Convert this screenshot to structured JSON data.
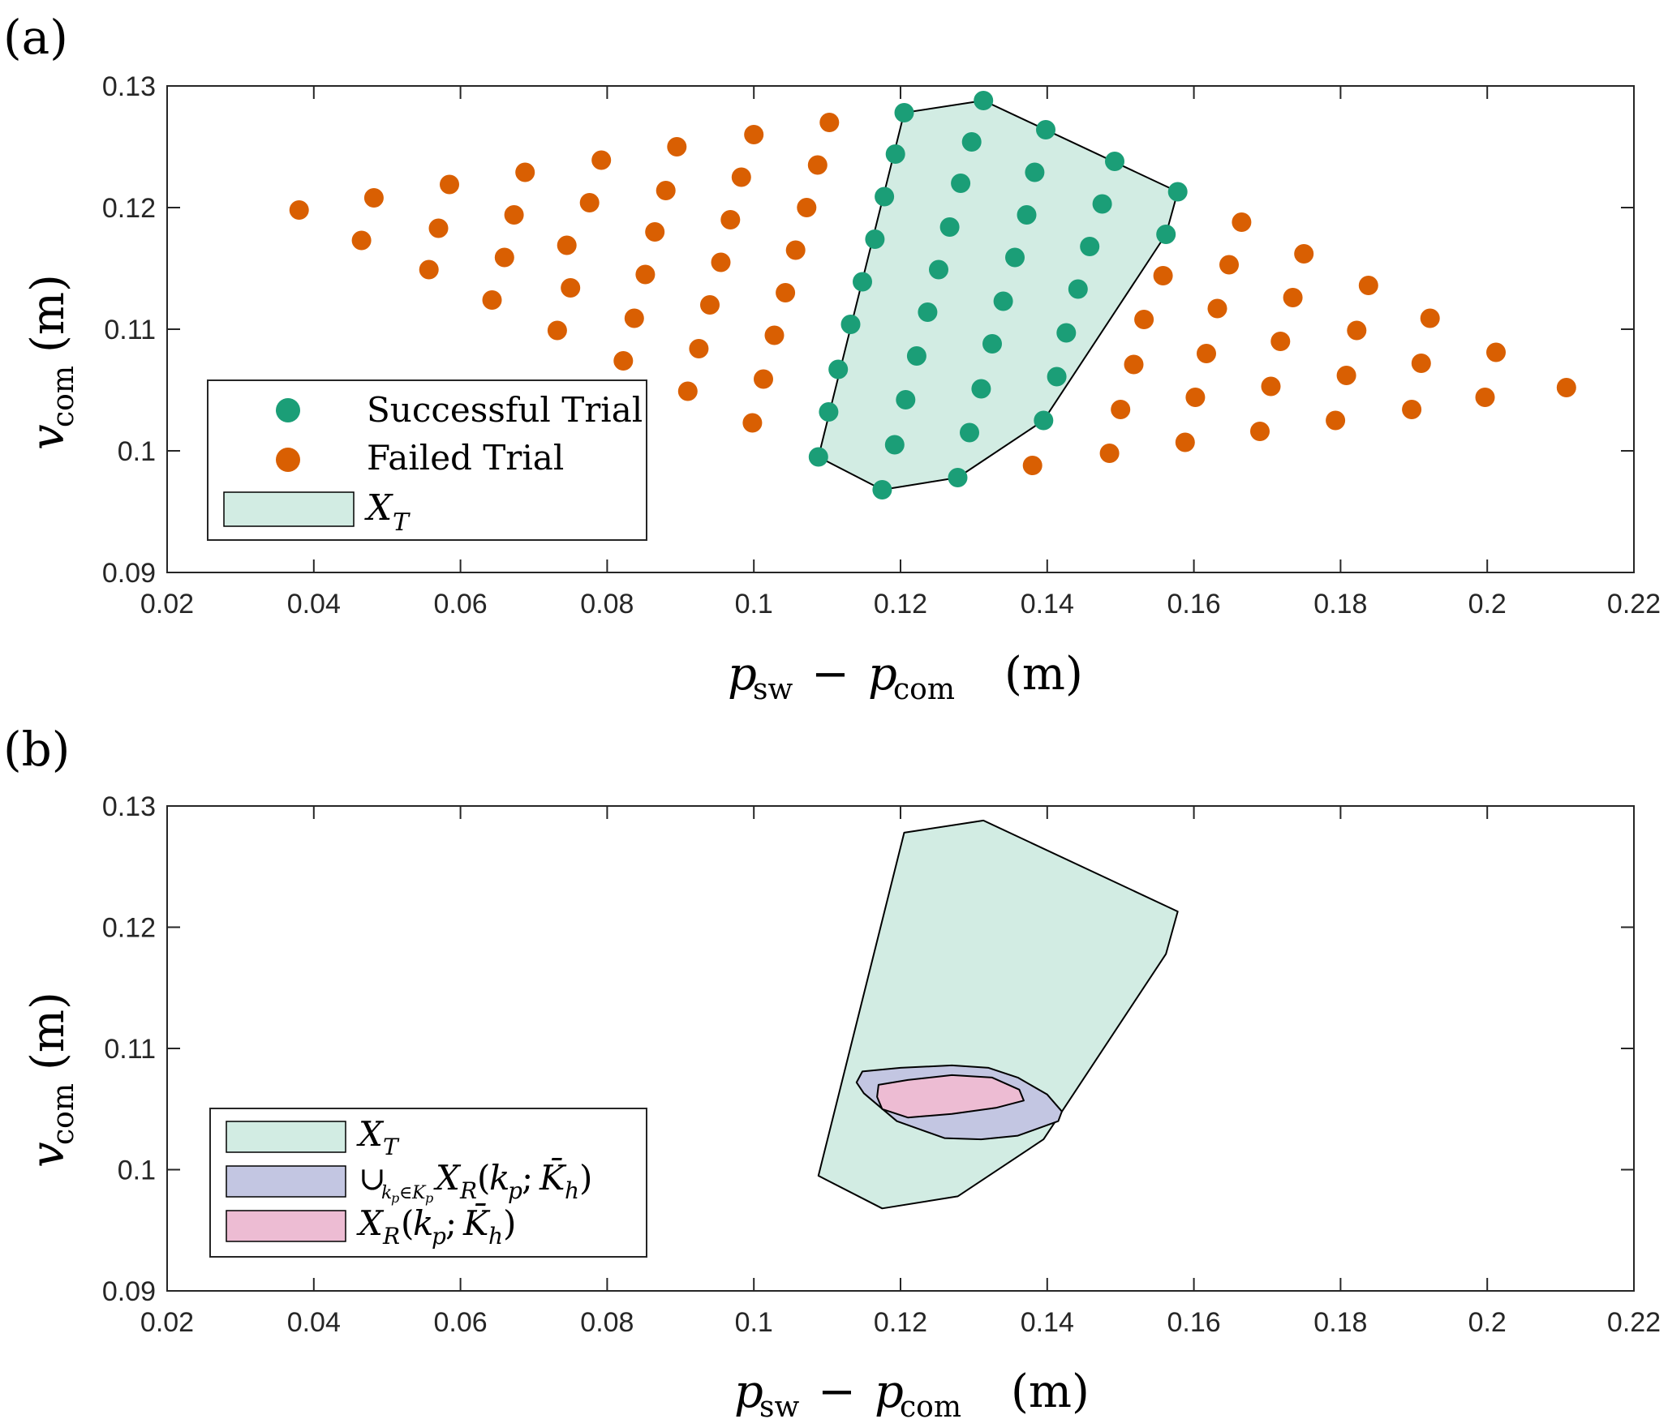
{
  "colors": {
    "success": "#1b9e77",
    "failed": "#d95f02",
    "xt_fill": "#d2ece3",
    "union_fill": "#c3c6e2",
    "xr_fill": "#edbcd3",
    "axis": "#262626"
  },
  "chart_data": [
    {
      "panel_label": "(a)",
      "type": "scatter",
      "xlabel": "p_sw − p_com (m)",
      "ylabel": "v_com (m)",
      "xlim": [
        0.02,
        0.22
      ],
      "ylim": [
        0.09,
        0.13
      ],
      "x_ticks": [
        "0.02",
        "0.04",
        "0.06",
        "0.08",
        "0.1",
        "0.12",
        "0.14",
        "0.16",
        "0.18",
        "0.2",
        "0.22"
      ],
      "y_ticks": [
        "0.09",
        "0.1",
        "0.11",
        "0.12",
        "0.13"
      ],
      "x_tick_values": [
        0.02,
        0.04,
        0.06,
        0.08,
        0.1,
        0.12,
        0.14,
        0.16,
        0.18,
        0.2,
        0.22
      ],
      "y_tick_values": [
        0.09,
        0.1,
        0.11,
        0.12,
        0.13
      ],
      "legend_position": "bottom-left",
      "legend": [
        {
          "label": "Successful Trial",
          "marker": "dot",
          "color_key": "success"
        },
        {
          "label": "Failed Trial",
          "marker": "dot",
          "color_key": "failed"
        },
        {
          "label": "X_T",
          "marker": "patch",
          "color_key": "xt_fill"
        }
      ],
      "series": [
        {
          "name": "Successful Trial",
          "points": [
            [
              0.1205,
              0.1278
            ],
            [
              0.1313,
              0.1288
            ],
            [
              0.1297,
              0.1254
            ],
            [
              0.1398,
              0.1264
            ],
            [
              0.1193,
              0.1244
            ],
            [
              0.1492,
              0.1238
            ],
            [
              0.1282,
              0.122
            ],
            [
              0.1383,
              0.1229
            ],
            [
              0.1178,
              0.1209
            ],
            [
              0.1578,
              0.1213
            ],
            [
              0.1475,
              0.1203
            ],
            [
              0.1372,
              0.1194
            ],
            [
              0.1267,
              0.1184
            ],
            [
              0.1562,
              0.1178
            ],
            [
              0.1165,
              0.1174
            ],
            [
              0.1458,
              0.1168
            ],
            [
              0.1356,
              0.1159
            ],
            [
              0.1252,
              0.1149
            ],
            [
              0.1148,
              0.1139
            ],
            [
              0.1442,
              0.1133
            ],
            [
              0.134,
              0.1123
            ],
            [
              0.1237,
              0.1114
            ],
            [
              0.1132,
              0.1104
            ],
            [
              0.1426,
              0.1097
            ],
            [
              0.1325,
              0.1088
            ],
            [
              0.1222,
              0.1078
            ],
            [
              0.1115,
              0.1067
            ],
            [
              0.1413,
              0.1061
            ],
            [
              0.131,
              0.1051
            ],
            [
              0.1207,
              0.1042
            ],
            [
              0.1102,
              0.1032
            ],
            [
              0.1395,
              0.1025
            ],
            [
              0.1294,
              0.1015
            ],
            [
              0.1192,
              0.1005
            ],
            [
              0.1088,
              0.0995
            ],
            [
              0.1278,
              0.0978
            ],
            [
              0.1175,
              0.0968
            ]
          ]
        },
        {
          "name": "Failed Trial",
          "points": [
            [
              0.038,
              0.1198
            ],
            [
              0.0482,
              0.1208
            ],
            [
              0.0585,
              0.1219
            ],
            [
              0.0688,
              0.1229
            ],
            [
              0.0792,
              0.1239
            ],
            [
              0.0895,
              0.125
            ],
            [
              0.1,
              0.126
            ],
            [
              0.1103,
              0.127
            ],
            [
              0.0465,
              0.1173
            ],
            [
              0.057,
              0.1183
            ],
            [
              0.0673,
              0.1194
            ],
            [
              0.0776,
              0.1204
            ],
            [
              0.088,
              0.1214
            ],
            [
              0.0983,
              0.1225
            ],
            [
              0.1087,
              0.1235
            ],
            [
              0.0557,
              0.1149
            ],
            [
              0.066,
              0.1159
            ],
            [
              0.0745,
              0.1169
            ],
            [
              0.0865,
              0.118
            ],
            [
              0.0968,
              0.119
            ],
            [
              0.1072,
              0.12
            ],
            [
              0.0643,
              0.1124
            ],
            [
              0.075,
              0.1134
            ],
            [
              0.0852,
              0.1145
            ],
            [
              0.0955,
              0.1155
            ],
            [
              0.1057,
              0.1165
            ],
            [
              0.0732,
              0.1099
            ],
            [
              0.0837,
              0.1109
            ],
            [
              0.094,
              0.112
            ],
            [
              0.1043,
              0.113
            ],
            [
              0.0822,
              0.1074
            ],
            [
              0.0925,
              0.1084
            ],
            [
              0.1028,
              0.1095
            ],
            [
              0.091,
              0.1049
            ],
            [
              0.1013,
              0.1059
            ],
            [
              0.0998,
              0.1023
            ],
            [
              0.1665,
              0.1188
            ],
            [
              0.175,
              0.1162
            ],
            [
              0.1558,
              0.1144
            ],
            [
              0.1648,
              0.1153
            ],
            [
              0.1838,
              0.1136
            ],
            [
              0.1735,
              0.1126
            ],
            [
              0.1632,
              0.1117
            ],
            [
              0.1532,
              0.1108
            ],
            [
              0.1922,
              0.1109
            ],
            [
              0.1822,
              0.1099
            ],
            [
              0.1718,
              0.109
            ],
            [
              0.1617,
              0.108
            ],
            [
              0.1518,
              0.1071
            ],
            [
              0.2012,
              0.1081
            ],
            [
              0.191,
              0.1072
            ],
            [
              0.1808,
              0.1062
            ],
            [
              0.1705,
              0.1053
            ],
            [
              0.1602,
              0.1044
            ],
            [
              0.15,
              0.1034
            ],
            [
              0.2108,
              0.1052
            ],
            [
              0.1997,
              0.1044
            ],
            [
              0.1897,
              0.1034
            ],
            [
              0.1793,
              0.1025
            ],
            [
              0.169,
              0.1016
            ],
            [
              0.1588,
              0.1007
            ],
            [
              0.1485,
              0.0998
            ],
            [
              0.138,
              0.0988
            ]
          ]
        }
      ],
      "regions": [
        {
          "name": "X_T",
          "color_key": "xt_fill",
          "polygon": [
            [
              0.1205,
              0.1278
            ],
            [
              0.1313,
              0.1288
            ],
            [
              0.1578,
              0.1213
            ],
            [
              0.1562,
              0.1178
            ],
            [
              0.1395,
              0.1025
            ],
            [
              0.1278,
              0.0978
            ],
            [
              0.1175,
              0.0968
            ],
            [
              0.1088,
              0.0995
            ]
          ]
        }
      ]
    },
    {
      "panel_label": "(b)",
      "type": "area",
      "xlabel": "p_sw − p_com (m)",
      "ylabel": "v_com (m)",
      "xlim": [
        0.02,
        0.22
      ],
      "ylim": [
        0.09,
        0.13
      ],
      "x_ticks": [
        "0.02",
        "0.04",
        "0.06",
        "0.08",
        "0.1",
        "0.12",
        "0.14",
        "0.16",
        "0.18",
        "0.2",
        "0.22"
      ],
      "y_ticks": [
        "0.09",
        "0.1",
        "0.11",
        "0.12",
        "0.13"
      ],
      "x_tick_values": [
        0.02,
        0.04,
        0.06,
        0.08,
        0.1,
        0.12,
        0.14,
        0.16,
        0.18,
        0.2,
        0.22
      ],
      "y_tick_values": [
        0.09,
        0.1,
        0.11,
        0.12,
        0.13
      ],
      "legend_position": "bottom-left",
      "legend": [
        {
          "label": "X_T",
          "marker": "patch",
          "color_key": "xt_fill"
        },
        {
          "label": "∪_{k_p∈K_p} X_R(k_p; K̄_h)",
          "marker": "patch",
          "color_key": "union_fill"
        },
        {
          "label": "X_R(k_p; K̄_h)",
          "marker": "patch",
          "color_key": "xr_fill"
        }
      ],
      "regions": [
        {
          "name": "X_T",
          "color_key": "xt_fill",
          "polygon": [
            [
              0.1205,
              0.1278
            ],
            [
              0.1313,
              0.1288
            ],
            [
              0.1578,
              0.1213
            ],
            [
              0.1562,
              0.1178
            ],
            [
              0.1395,
              0.1025
            ],
            [
              0.1278,
              0.0978
            ],
            [
              0.1175,
              0.0968
            ],
            [
              0.1088,
              0.0995
            ]
          ]
        },
        {
          "name": "∪ X_R",
          "color_key": "union_fill",
          "polygon": [
            [
              0.1148,
              0.1081
            ],
            [
              0.12,
              0.1084
            ],
            [
              0.127,
              0.1086
            ],
            [
              0.132,
              0.1084
            ],
            [
              0.136,
              0.1076
            ],
            [
              0.14,
              0.1062
            ],
            [
              0.142,
              0.1048
            ],
            [
              0.1415,
              0.104
            ],
            [
              0.136,
              0.1028
            ],
            [
              0.131,
              0.1025
            ],
            [
              0.126,
              0.1026
            ],
            [
              0.1195,
              0.104
            ],
            [
              0.115,
              0.1063
            ],
            [
              0.114,
              0.1072
            ]
          ]
        },
        {
          "name": "X_R",
          "color_key": "xr_fill",
          "polygon": [
            [
              0.117,
              0.107
            ],
            [
              0.121,
              0.1074
            ],
            [
              0.127,
              0.1078
            ],
            [
              0.1325,
              0.1076
            ],
            [
              0.1362,
              0.1066
            ],
            [
              0.1368,
              0.1057
            ],
            [
              0.133,
              0.1051
            ],
            [
              0.127,
              0.1046
            ],
            [
              0.121,
              0.1043
            ],
            [
              0.1175,
              0.105
            ],
            [
              0.1168,
              0.106
            ]
          ]
        }
      ]
    }
  ]
}
